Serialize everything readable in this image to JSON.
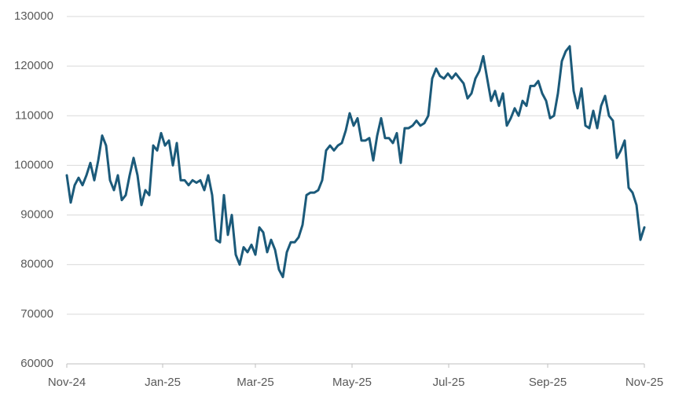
{
  "chart_data": {
    "type": "line",
    "color": "#1b5a7a",
    "grid": true,
    "xlim": [
      0,
      147
    ],
    "xticks": [
      {
        "value": 0,
        "label": "Nov-24"
      },
      {
        "value": 24.4,
        "label": "Jan-25"
      },
      {
        "value": 48,
        "label": "Mar-25"
      },
      {
        "value": 72.6,
        "label": "May-25"
      },
      {
        "value": 97.2,
        "label": "Jul-25"
      },
      {
        "value": 122.4,
        "label": "Sep-25"
      },
      {
        "value": 147,
        "label": "Nov-25"
      }
    ],
    "ylim": [
      60000,
      130000
    ],
    "yticks": [
      60000,
      70000,
      80000,
      90000,
      100000,
      110000,
      120000,
      130000
    ],
    "values": [
      98000,
      92500,
      96000,
      97500,
      96000,
      98000,
      100500,
      97000,
      101000,
      106000,
      104000,
      97000,
      95000,
      98000,
      93000,
      94000,
      98000,
      101500,
      98000,
      92000,
      95000,
      94000,
      104000,
      103000,
      106500,
      104000,
      105000,
      100000,
      104500,
      97000,
      97000,
      96000,
      97000,
      96500,
      97000,
      95000,
      98000,
      94000,
      85000,
      84500,
      94000,
      86000,
      90000,
      82000,
      80000,
      83500,
      82500,
      84000,
      82000,
      87500,
      86500,
      82500,
      85000,
      83000,
      79000,
      77500,
      82500,
      84500,
      84500,
      85500,
      88000,
      94000,
      94500,
      94500,
      95000,
      97000,
      103000,
      104000,
      103000,
      104000,
      104500,
      107000,
      110500,
      108000,
      109500,
      105000,
      105000,
      105500,
      101000,
      106000,
      109500,
      105500,
      105500,
      104500,
      106500,
      100500,
      107500,
      107500,
      108000,
      109000,
      108000,
      108500,
      110000,
      117500,
      119500,
      118000,
      117500,
      118500,
      117500,
      118500,
      117500,
      116500,
      113500,
      114500,
      117500,
      119000,
      122000,
      117500,
      113000,
      115000,
      112000,
      114500,
      108000,
      109500,
      111500,
      110000,
      113000,
      112000,
      116000,
      116000,
      117000,
      114500,
      113000,
      109500,
      110000,
      114500,
      121000,
      123000,
      124000,
      115000,
      111500,
      115500,
      108000,
      107500,
      111000,
      107500,
      112000,
      114000,
      110000,
      109000,
      101500,
      103000,
      105000,
      95500,
      94500,
      92000,
      85000,
      87500
    ]
  }
}
